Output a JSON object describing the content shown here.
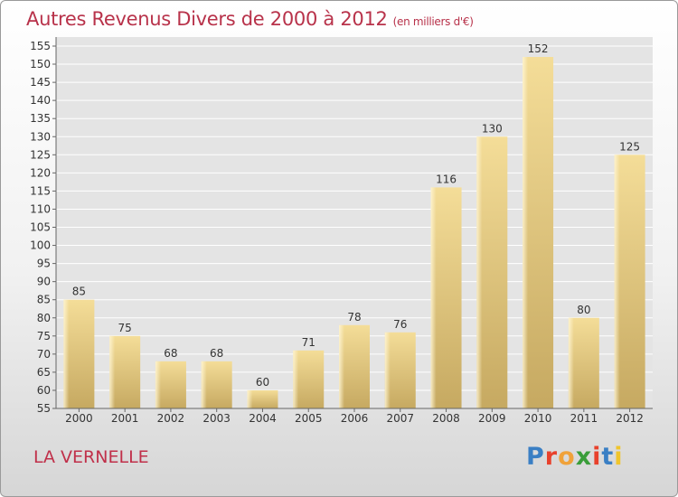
{
  "header": {
    "title": "Autres Revenus Divers de 2000 à 2012",
    "subtitle": "(en milliers d'€)"
  },
  "footer": {
    "place": "LA VERNELLE",
    "logo": "Proxiti",
    "logo_colors": [
      "#3a7fc4",
      "#e8412c",
      "#f0a23a",
      "#3a9d3a",
      "#e8412c",
      "#3a7fc4",
      "#f0c52c"
    ]
  },
  "chart_data": {
    "type": "bar",
    "title": "Autres Revenus Divers de 2000 à 2012",
    "subtitle": "(en milliers d'€)",
    "categories": [
      "2000",
      "2001",
      "2002",
      "2003",
      "2004",
      "2005",
      "2006",
      "2007",
      "2008",
      "2009",
      "2010",
      "2011",
      "2012"
    ],
    "values": [
      85,
      75,
      68,
      68,
      60,
      71,
      78,
      76,
      116,
      130,
      152,
      80,
      125
    ],
    "ylim": [
      55,
      155
    ],
    "ytick_step": 5,
    "grid": true,
    "bar_color": "#e8cf87"
  }
}
